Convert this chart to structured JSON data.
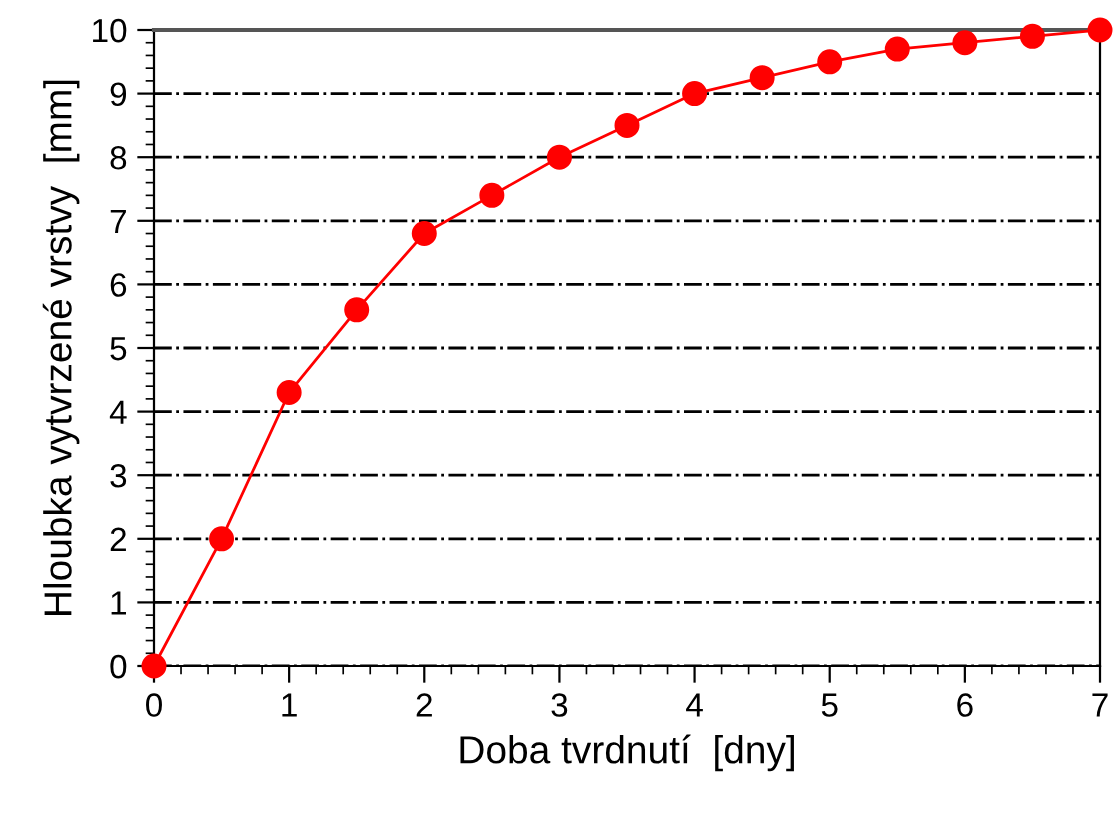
{
  "chart_data": {
    "type": "line",
    "xlabel": "Doba tvrdnutí  [dny]",
    "ylabel": "Hloubka vytvrzené vrstvy  [mm]",
    "x": [
      0,
      0.5,
      1,
      1.5,
      2,
      2.5,
      3,
      3.5,
      4,
      4.5,
      5,
      5.5,
      6,
      6.5,
      7
    ],
    "series": [
      {
        "color": "#ff0000",
        "values": [
          0,
          2.0,
          4.3,
          5.6,
          6.8,
          7.4,
          8.0,
          8.5,
          9.0,
          9.25,
          9.5,
          9.7,
          9.8,
          9.9,
          10.0
        ]
      }
    ],
    "xlim": [
      0,
      7
    ],
    "xticks": [
      0,
      1,
      2,
      3,
      4,
      5,
      6,
      7
    ],
    "ylim": [
      0,
      10
    ],
    "yticks": [
      0,
      1,
      2,
      3,
      4,
      5,
      6,
      7,
      8,
      9,
      10
    ],
    "grid": "y",
    "marker": "circle",
    "line_style": "solid"
  }
}
